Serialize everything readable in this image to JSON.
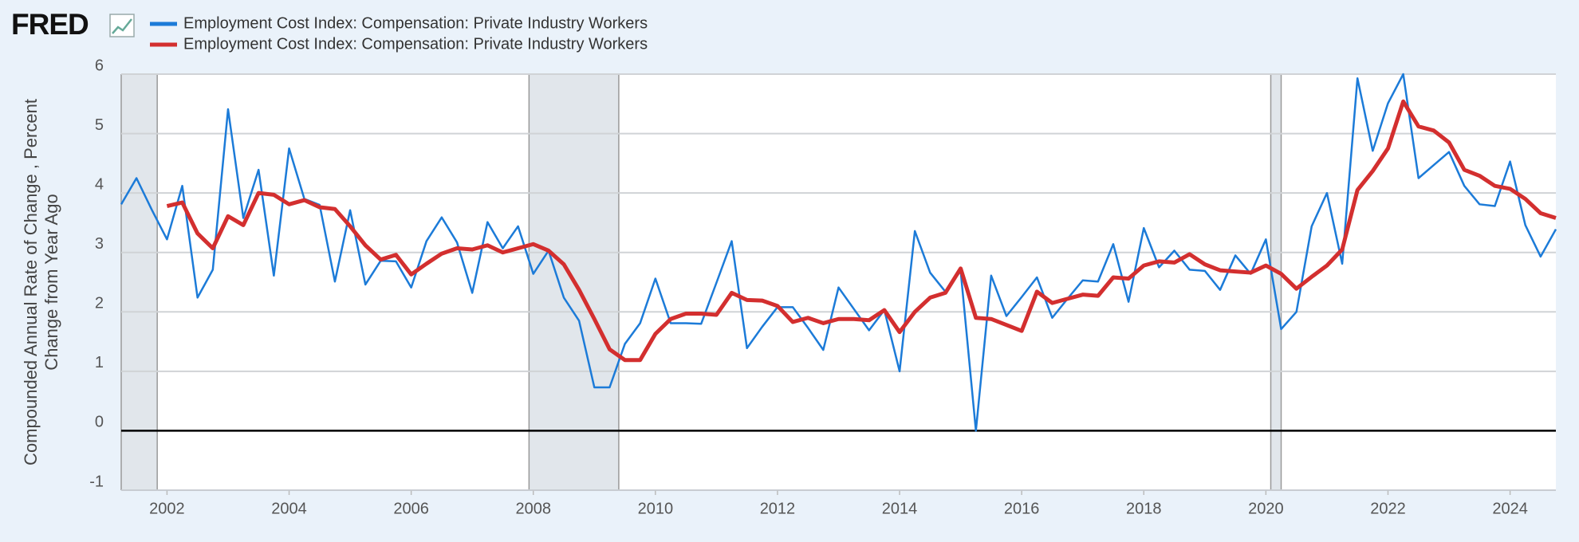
{
  "chart_data": {
    "type": "line",
    "logo": "FRED",
    "ylabel": [
      "Compounded Annual Rate of Change , Percent",
      "Change from Year Ago"
    ],
    "x": [
      2001.25,
      2001.5,
      2001.75,
      2002,
      2002.25,
      2002.5,
      2002.75,
      2003,
      2003.25,
      2003.5,
      2003.75,
      2004,
      2004.25,
      2004.5,
      2004.75,
      2005,
      2005.25,
      2005.5,
      2005.75,
      2006,
      2006.25,
      2006.5,
      2006.75,
      2007,
      2007.25,
      2007.5,
      2007.75,
      2008,
      2008.25,
      2008.5,
      2008.75,
      2009,
      2009.25,
      2009.5,
      2009.75,
      2010,
      2010.25,
      2010.5,
      2010.75,
      2011,
      2011.25,
      2011.5,
      2011.75,
      2012,
      2012.25,
      2012.5,
      2012.75,
      2013,
      2013.25,
      2013.5,
      2013.75,
      2014,
      2014.25,
      2014.5,
      2014.75,
      2015,
      2015.25,
      2015.5,
      2015.75,
      2016,
      2016.25,
      2016.5,
      2016.75,
      2017,
      2017.25,
      2017.5,
      2017.75,
      2018,
      2018.25,
      2018.5,
      2018.75,
      2019,
      2019.25,
      2019.5,
      2019.75,
      2020,
      2020.25,
      2020.5,
      2020.75,
      2021,
      2021.25,
      2021.5,
      2021.75,
      2022,
      2022.25,
      2022.5,
      2022.75,
      2023,
      2023.25,
      2023.5,
      2023.75,
      2024,
      2024.25,
      2024.5,
      2024.75
    ],
    "series": [
      {
        "name": "Employment Cost Index: Compensation: Private Industry Workers",
        "color": "#1c7bd8",
        "width": 2.5,
        "values": [
          3.81,
          4.25,
          3.72,
          3.22,
          4.12,
          2.24,
          2.71,
          5.41,
          3.58,
          4.39,
          2.61,
          4.75,
          3.9,
          3.8,
          2.51,
          3.71,
          2.46,
          2.86,
          2.85,
          2.41,
          3.19,
          3.59,
          3.17,
          2.32,
          3.51,
          3.07,
          3.44,
          2.64,
          3.03,
          2.24,
          1.85,
          0.73,
          0.73,
          1.46,
          1.81,
          2.56,
          1.81,
          1.81,
          1.8,
          2.49,
          3.19,
          1.39,
          1.75,
          2.08,
          2.08,
          1.73,
          1.36,
          2.41,
          2.05,
          1.69,
          2.03,
          1.0,
          3.36,
          2.66,
          2.34,
          2.69,
          0.0,
          2.61,
          1.93,
          2.25,
          2.58,
          1.9,
          2.22,
          2.53,
          2.51,
          3.14,
          2.17,
          3.41,
          2.75,
          3.03,
          2.71,
          2.69,
          2.37,
          2.95,
          2.64,
          3.22,
          1.71,
          2.0,
          3.44,
          4.0,
          2.81,
          5.93,
          4.71,
          5.51,
          6.0,
          4.25,
          4.47,
          4.69,
          4.12,
          3.81,
          3.78,
          4.53,
          3.46,
          2.93,
          3.39
        ]
      },
      {
        "name": "Employment Cost Index: Compensation: Private Industry Workers",
        "color": "#d32f2f",
        "width": 5,
        "values": [
          null,
          null,
          null,
          3.78,
          3.84,
          3.32,
          3.07,
          3.61,
          3.46,
          4.0,
          3.97,
          3.81,
          3.88,
          3.76,
          3.73,
          3.44,
          3.12,
          2.88,
          2.96,
          2.63,
          2.81,
          2.98,
          3.07,
          3.05,
          3.12,
          3.0,
          3.07,
          3.14,
          3.03,
          2.8,
          2.37,
          1.88,
          1.37,
          1.19,
          1.19,
          1.63,
          1.88,
          1.97,
          1.97,
          1.95,
          2.32,
          2.2,
          2.19,
          2.1,
          1.83,
          1.9,
          1.81,
          1.88,
          1.88,
          1.86,
          2.03,
          1.66,
          2.0,
          2.24,
          2.32,
          2.73,
          1.9,
          1.88,
          1.78,
          1.68,
          2.34,
          2.15,
          2.22,
          2.29,
          2.27,
          2.58,
          2.56,
          2.78,
          2.85,
          2.83,
          2.97,
          2.8,
          2.7,
          2.68,
          2.66,
          2.78,
          2.64,
          2.39,
          2.59,
          2.78,
          3.05,
          4.05,
          4.37,
          4.75,
          5.54,
          5.12,
          5.05,
          4.85,
          4.39,
          4.29,
          4.12,
          4.07,
          3.9,
          3.66,
          3.58
        ]
      }
    ],
    "shading": [
      [
        2001.25,
        2001.84
      ],
      [
        2007.93,
        2009.4
      ],
      [
        2020.08,
        2020.25
      ]
    ],
    "shading_color": "#e1e6eb",
    "xlim": [
      2001.25,
      2024.75
    ],
    "xticks": [
      2002,
      2004,
      2006,
      2008,
      2010,
      2012,
      2014,
      2016,
      2018,
      2020,
      2022,
      2024
    ],
    "ylim": [
      -1,
      6
    ],
    "yticks": [
      -1,
      0,
      1,
      2,
      3,
      4,
      5,
      6
    ],
    "grid": true,
    "zero_line": true
  }
}
